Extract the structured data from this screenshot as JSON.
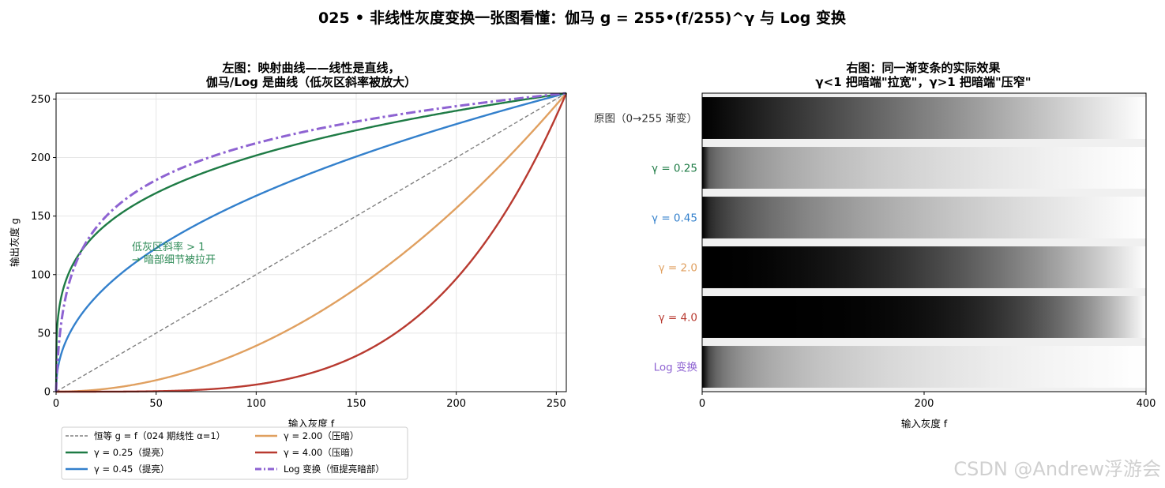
{
  "suptitle": "025 • 非线性灰度变换一张图看懂：伽马 g = 255•(f/255)^γ 与 Log 变换",
  "watermark": "CSDN @Andrew浮游会",
  "chart_data": [
    {
      "type": "line",
      "title_line1": "左图：映射曲线——线性是直线，",
      "title_line2": "伽马/Log 是曲线（低灰区斜率被放大）",
      "xlabel": "输入灰度 f",
      "ylabel": "输出灰度 g",
      "xlim": [
        0,
        255
      ],
      "ylim": [
        0,
        255
      ],
      "xticks": [
        "0",
        "50",
        "100",
        "150",
        "200",
        "250"
      ],
      "yticks": [
        "0",
        "50",
        "100",
        "150",
        "200",
        "250"
      ],
      "grid": true,
      "annotation_line1": "低灰区斜率 > 1",
      "annotation_line2": "→ 暗部细节被拉开",
      "legend_position": "below-left",
      "series": [
        {
          "name": "恒等 g = f（024 期线性 α=1）",
          "kind": "identity",
          "color": "#808080",
          "style": "dashed"
        },
        {
          "name": "γ = 0.25（提亮）",
          "kind": "gamma",
          "gamma": 0.25,
          "color": "#1e7b45",
          "style": "solid"
        },
        {
          "name": "γ = 0.45（提亮）",
          "kind": "gamma",
          "gamma": 0.45,
          "color": "#3380cc",
          "style": "solid"
        },
        {
          "name": "γ = 2.00（压暗）",
          "kind": "gamma",
          "gamma": 2.0,
          "color": "#e0a060",
          "style": "solid"
        },
        {
          "name": "γ = 4.00（压暗）",
          "kind": "gamma",
          "gamma": 4.0,
          "color": "#b83a30",
          "style": "solid"
        },
        {
          "name": "Log 变换（恒提亮暗部）",
          "kind": "log",
          "color": "#8e63d2",
          "style": "dashdot"
        }
      ]
    },
    {
      "type": "heatmap",
      "title_line1": "右图：同一渐变条的实际效果",
      "title_line2": "γ<1 把暗端\"拉宽\"，γ>1 把暗端\"压窄\"",
      "xlabel": "输入灰度 f",
      "xticks": [
        "0",
        "200",
        "400"
      ],
      "xlim": [
        0,
        400
      ],
      "rows": [
        {
          "label": "原图（0→255 渐变）",
          "kind": "identity",
          "color": "#333333"
        },
        {
          "label": "γ = 0.25",
          "kind": "gamma",
          "gamma": 0.25,
          "color": "#1e7b45"
        },
        {
          "label": "γ = 0.45",
          "kind": "gamma",
          "gamma": 0.45,
          "color": "#3380cc"
        },
        {
          "label": "γ = 2.0",
          "kind": "gamma",
          "gamma": 2.0,
          "color": "#e0a060"
        },
        {
          "label": "γ = 4.0",
          "kind": "gamma",
          "gamma": 4.0,
          "color": "#b83a30"
        },
        {
          "label": "Log 变换",
          "kind": "log",
          "color": "#8e63d2"
        }
      ]
    }
  ]
}
